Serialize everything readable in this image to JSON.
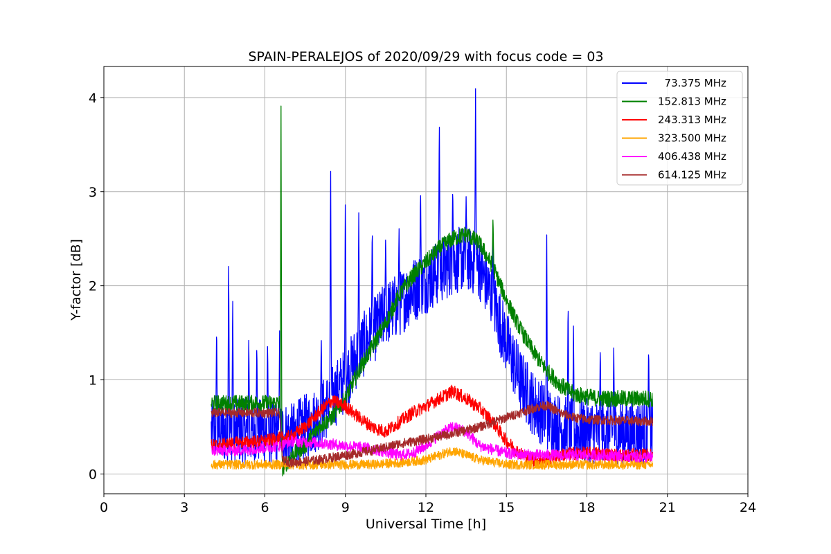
{
  "chart_data": {
    "type": "line",
    "title": "SPAIN-PERALEJOS of 2020/09/29 with focus code = 03",
    "xlabel": "Universal Time [h]",
    "ylabel": "Y-factor [dB]",
    "xlim": [
      0,
      24
    ],
    "ylim": [
      -0.21,
      4.33
    ],
    "xticks": [
      0,
      3,
      6,
      9,
      12,
      15,
      18,
      21,
      24
    ],
    "xtick_labels": [
      "0",
      "3",
      "6",
      "9",
      "12",
      "15",
      "18",
      "21",
      "24"
    ],
    "yticks": [
      0,
      1,
      2,
      3,
      4
    ],
    "ytick_labels": [
      "0",
      "1",
      "2",
      "3",
      "4"
    ],
    "grid": true,
    "legend_position": "top-right",
    "series": [
      {
        "name": "  73.375 MHz",
        "color": "#0000ff",
        "noise": 0.35,
        "x": [
          4.0,
          4.5,
          5.0,
          5.5,
          6.0,
          6.5,
          7.0,
          7.5,
          8.0,
          8.5,
          9.0,
          9.5,
          10.0,
          10.5,
          11.0,
          11.5,
          12.0,
          12.5,
          13.0,
          13.5,
          14.0,
          14.5,
          15.0,
          15.5,
          16.0,
          16.5,
          17.0,
          17.5,
          18.0,
          18.5,
          19.0,
          19.5,
          20.0,
          20.45
        ],
        "y": [
          0.45,
          0.45,
          0.45,
          0.45,
          0.45,
          0.45,
          0.4,
          0.5,
          0.6,
          0.8,
          1.0,
          1.3,
          1.5,
          1.7,
          1.8,
          1.95,
          2.05,
          2.15,
          2.25,
          2.3,
          2.2,
          1.85,
          1.4,
          1.0,
          0.75,
          0.6,
          0.5,
          0.45,
          0.45,
          0.45,
          0.45,
          0.45,
          0.45,
          0.45
        ],
        "peaks": [
          [
            4.2,
            1.64
          ],
          [
            4.65,
            2.35
          ],
          [
            4.8,
            1.93
          ],
          [
            5.4,
            1.48
          ],
          [
            5.7,
            1.43
          ],
          [
            6.1,
            1.44
          ],
          [
            6.55,
            1.53
          ],
          [
            8.1,
            1.48
          ],
          [
            8.45,
            3.37
          ],
          [
            9.0,
            3.09
          ],
          [
            9.5,
            2.8
          ],
          [
            10.0,
            2.7
          ],
          [
            10.5,
            2.55
          ],
          [
            11.0,
            2.65
          ],
          [
            11.8,
            3.08
          ],
          [
            12.5,
            3.83
          ],
          [
            13.0,
            3.08
          ],
          [
            13.5,
            2.95
          ],
          [
            13.85,
            4.13
          ],
          [
            14.5,
            2.5
          ],
          [
            16.5,
            2.68
          ],
          [
            17.3,
            1.92
          ],
          [
            17.5,
            1.6
          ],
          [
            18.5,
            1.4
          ],
          [
            19.0,
            1.35
          ],
          [
            20.3,
            1.4
          ]
        ]
      },
      {
        "name": "152.813 MHz",
        "color": "#008000",
        "noise": 0.09,
        "x": [
          4.0,
          5.0,
          6.0,
          6.55,
          6.65,
          7.0,
          7.5,
          8.0,
          8.5,
          9.0,
          9.5,
          10.0,
          10.5,
          11.0,
          11.5,
          12.0,
          12.5,
          13.0,
          13.5,
          14.0,
          14.5,
          15.0,
          15.5,
          16.0,
          16.5,
          17.0,
          17.5,
          18.0,
          18.5,
          19.0,
          19.5,
          20.0,
          20.45
        ],
        "y": [
          0.75,
          0.75,
          0.75,
          0.75,
          0.05,
          0.2,
          0.3,
          0.5,
          0.6,
          0.8,
          1.1,
          1.35,
          1.6,
          1.9,
          2.1,
          2.25,
          2.4,
          2.5,
          2.55,
          2.45,
          2.2,
          1.85,
          1.55,
          1.3,
          1.1,
          0.95,
          0.85,
          0.82,
          0.8,
          0.8,
          0.8,
          0.8,
          0.8
        ],
        "peaks": [
          [
            6.6,
            4.05
          ],
          [
            14.5,
            2.75
          ]
        ]
      },
      {
        "name": "243.313 MHz",
        "color": "#ff0000",
        "noise": 0.07,
        "x": [
          4.0,
          5.0,
          6.0,
          6.6,
          7.0,
          7.5,
          8.0,
          8.5,
          9.0,
          9.5,
          10.0,
          10.5,
          11.0,
          11.5,
          12.0,
          12.5,
          13.0,
          13.5,
          14.0,
          14.5,
          15.0,
          15.5,
          16.0,
          16.5,
          17.0,
          17.5,
          18.0,
          18.5,
          19.0,
          19.5,
          20.0,
          20.45
        ],
        "y": [
          0.3,
          0.33,
          0.35,
          0.38,
          0.4,
          0.5,
          0.65,
          0.78,
          0.72,
          0.6,
          0.5,
          0.45,
          0.55,
          0.65,
          0.72,
          0.8,
          0.88,
          0.8,
          0.7,
          0.55,
          0.35,
          0.22,
          0.15,
          0.15,
          0.2,
          0.22,
          0.22,
          0.22,
          0.2,
          0.2,
          0.2,
          0.2
        ],
        "peaks": []
      },
      {
        "name": "323.500 MHz",
        "color": "#ffa500",
        "noise": 0.05,
        "x": [
          4.0,
          5.0,
          6.0,
          7.0,
          8.0,
          9.0,
          10.0,
          11.0,
          12.0,
          12.5,
          13.0,
          13.5,
          14.0,
          15.0,
          16.0,
          17.0,
          18.0,
          19.0,
          20.0,
          20.45
        ],
        "y": [
          0.1,
          0.1,
          0.1,
          0.1,
          0.1,
          0.1,
          0.1,
          0.12,
          0.15,
          0.2,
          0.25,
          0.2,
          0.15,
          0.1,
          0.1,
          0.1,
          0.1,
          0.1,
          0.1,
          0.1
        ],
        "peaks": []
      },
      {
        "name": "406.438 MHz",
        "color": "#ff00ff",
        "noise": 0.06,
        "x": [
          4.0,
          5.0,
          6.0,
          6.6,
          7.0,
          8.0,
          9.0,
          10.0,
          11.0,
          11.5,
          12.0,
          12.5,
          13.0,
          13.5,
          14.0,
          15.0,
          16.0,
          17.0,
          18.0,
          19.0,
          20.0,
          20.45
        ],
        "y": [
          0.25,
          0.25,
          0.28,
          0.3,
          0.35,
          0.33,
          0.3,
          0.27,
          0.2,
          0.22,
          0.3,
          0.42,
          0.5,
          0.45,
          0.3,
          0.22,
          0.2,
          0.2,
          0.2,
          0.2,
          0.18,
          0.18
        ],
        "peaks": []
      },
      {
        "name": "614.125 MHz",
        "color": "#a52a2a",
        "noise": 0.05,
        "x": [
          4.0,
          5.0,
          6.0,
          6.55,
          6.65,
          7.0,
          8.0,
          9.0,
          10.0,
          11.0,
          12.0,
          13.0,
          14.0,
          15.0,
          16.0,
          16.5,
          17.0,
          17.5,
          18.0,
          19.0,
          20.0,
          20.45
        ],
        "y": [
          0.65,
          0.65,
          0.65,
          0.65,
          0.15,
          0.12,
          0.15,
          0.2,
          0.25,
          0.32,
          0.37,
          0.43,
          0.5,
          0.6,
          0.7,
          0.73,
          0.65,
          0.6,
          0.58,
          0.57,
          0.56,
          0.56
        ],
        "peaks": []
      }
    ]
  }
}
